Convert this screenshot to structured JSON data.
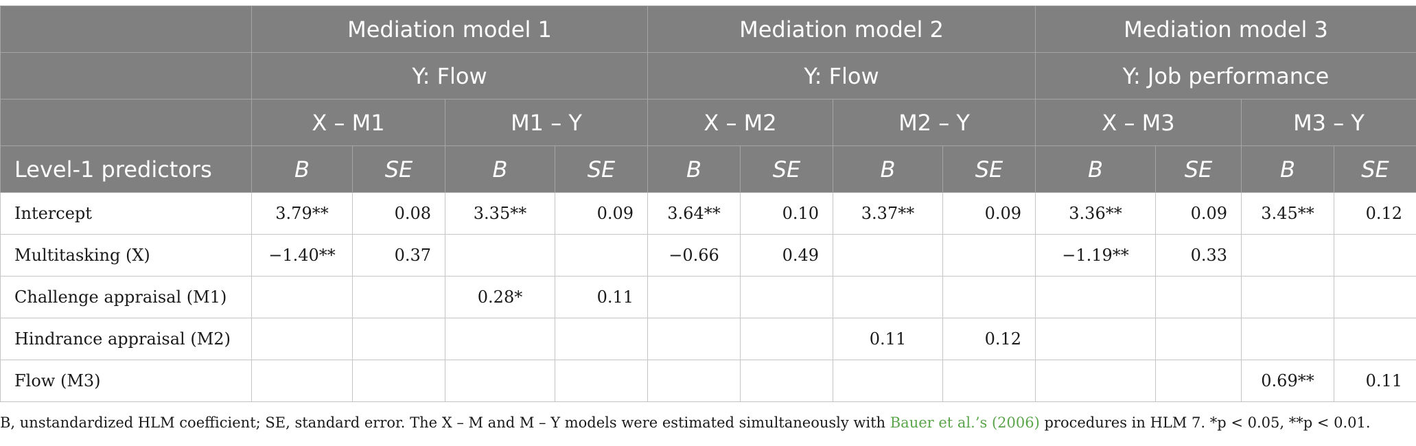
{
  "table": {
    "models": [
      {
        "title": "Mediation model 1",
        "outcome": "Y: Flow",
        "paths": [
          "X – M1",
          "M1 – Y"
        ]
      },
      {
        "title": "Mediation model 2",
        "outcome": "Y: Flow",
        "paths": [
          "X – M2",
          "M2 – Y"
        ]
      },
      {
        "title": "Mediation model 3",
        "outcome": "Y: Job performance",
        "paths": [
          "X – M3",
          "M3 – Y"
        ]
      }
    ],
    "stub_header": "Level-1 predictors",
    "stat_b": "B",
    "stat_se": "SE",
    "rows": [
      {
        "label": "Intercept",
        "values": [
          "3.79**",
          "0.08",
          "3.35**",
          "0.09",
          "3.64**",
          "0.10",
          "3.37**",
          "0.09",
          "3.36**",
          "0.09",
          "3.45**",
          "0.12"
        ]
      },
      {
        "label": "Multitasking (X)",
        "values": [
          "−1.40**",
          "0.37",
          "",
          "",
          "−0.66",
          "0.49",
          "",
          "",
          "−1.19**",
          "0.33",
          "",
          ""
        ]
      },
      {
        "label": "Challenge appraisal (M1)",
        "values": [
          "",
          "",
          "0.28*",
          "0.11",
          "",
          "",
          "",
          "",
          "",
          "",
          "",
          ""
        ]
      },
      {
        "label": "Hindrance appraisal (M2)",
        "values": [
          "",
          "",
          "",
          "",
          "",
          "",
          "0.11",
          "0.12",
          "",
          "",
          "",
          ""
        ]
      },
      {
        "label": "Flow (M3)",
        "values": [
          "",
          "",
          "",
          "",
          "",
          "",
          "",
          "",
          "",
          "",
          "0.69**",
          "0.11"
        ]
      }
    ]
  },
  "footnote": {
    "before": "B, unstandardized HLM coefficient; SE, standard error. The X – M and M – Y models were estimated simultaneously with ",
    "link": "Bauer et al.’s (2006)",
    "after": " procedures in HLM 7. *p < 0.05, **p < 0.01."
  },
  "colors": {
    "header_bg": "#808080",
    "header_text": "#ffffff",
    "grid": "#c4c4c4",
    "link": "#5aa54a"
  }
}
